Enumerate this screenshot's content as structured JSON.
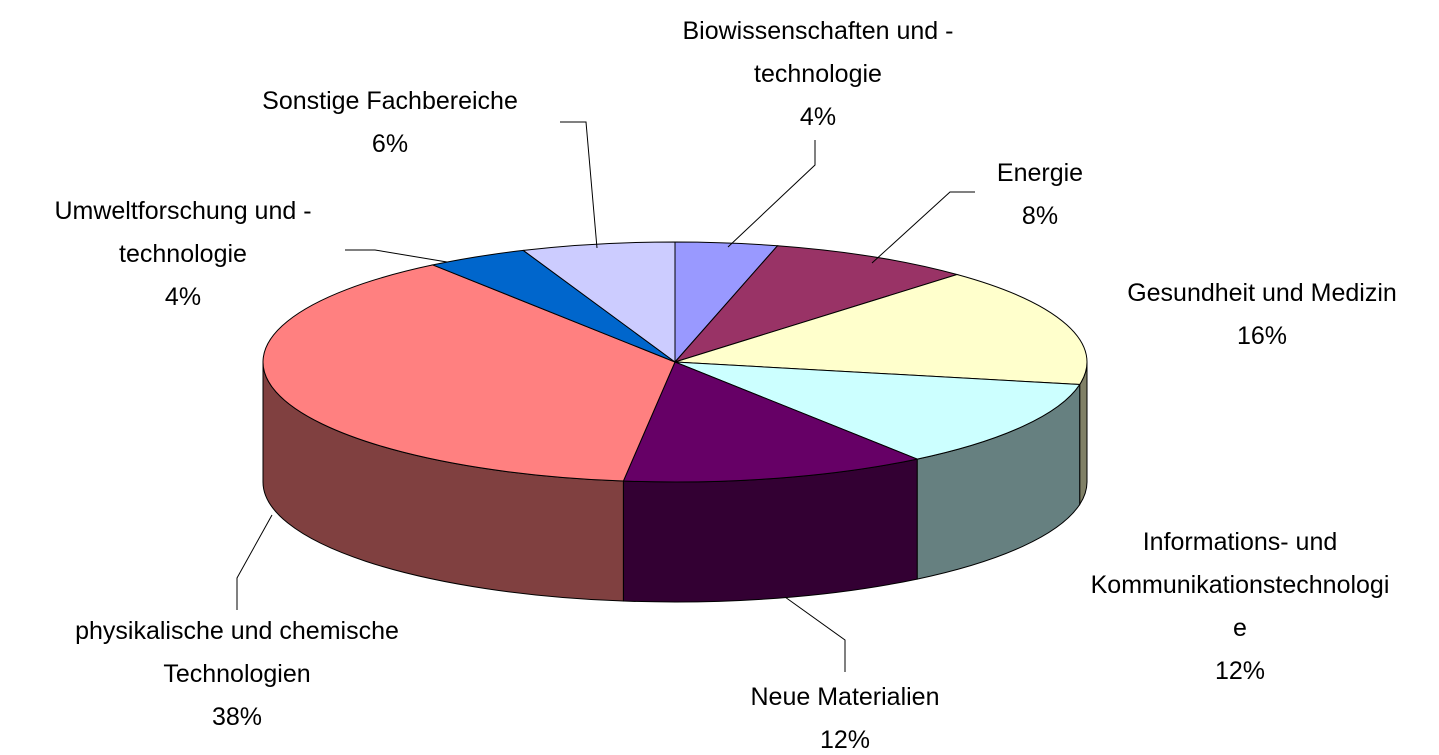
{
  "chart_data": {
    "type": "pie3d",
    "categories": [
      "Biowissenschaften und -technologie",
      "Energie",
      "Gesundheit und Medizin",
      "Informations- und Kommunikationstechnologie",
      "Neue Materialien",
      "physikalische und chemische Technologien",
      "Umweltforschung und -technologie",
      "Sonstige Fachbereiche"
    ],
    "values": [
      4,
      8,
      16,
      12,
      12,
      38,
      4,
      6
    ],
    "value_labels": [
      "4%",
      "8%",
      "16%",
      "12%",
      "12%",
      "38%",
      "4%",
      "6%"
    ],
    "colors": [
      "#9999ff",
      "#993366",
      "#ffffcc",
      "#ccffff",
      "#660066",
      "#ff8080",
      "#0066cc",
      "#ccccff"
    ]
  }
}
